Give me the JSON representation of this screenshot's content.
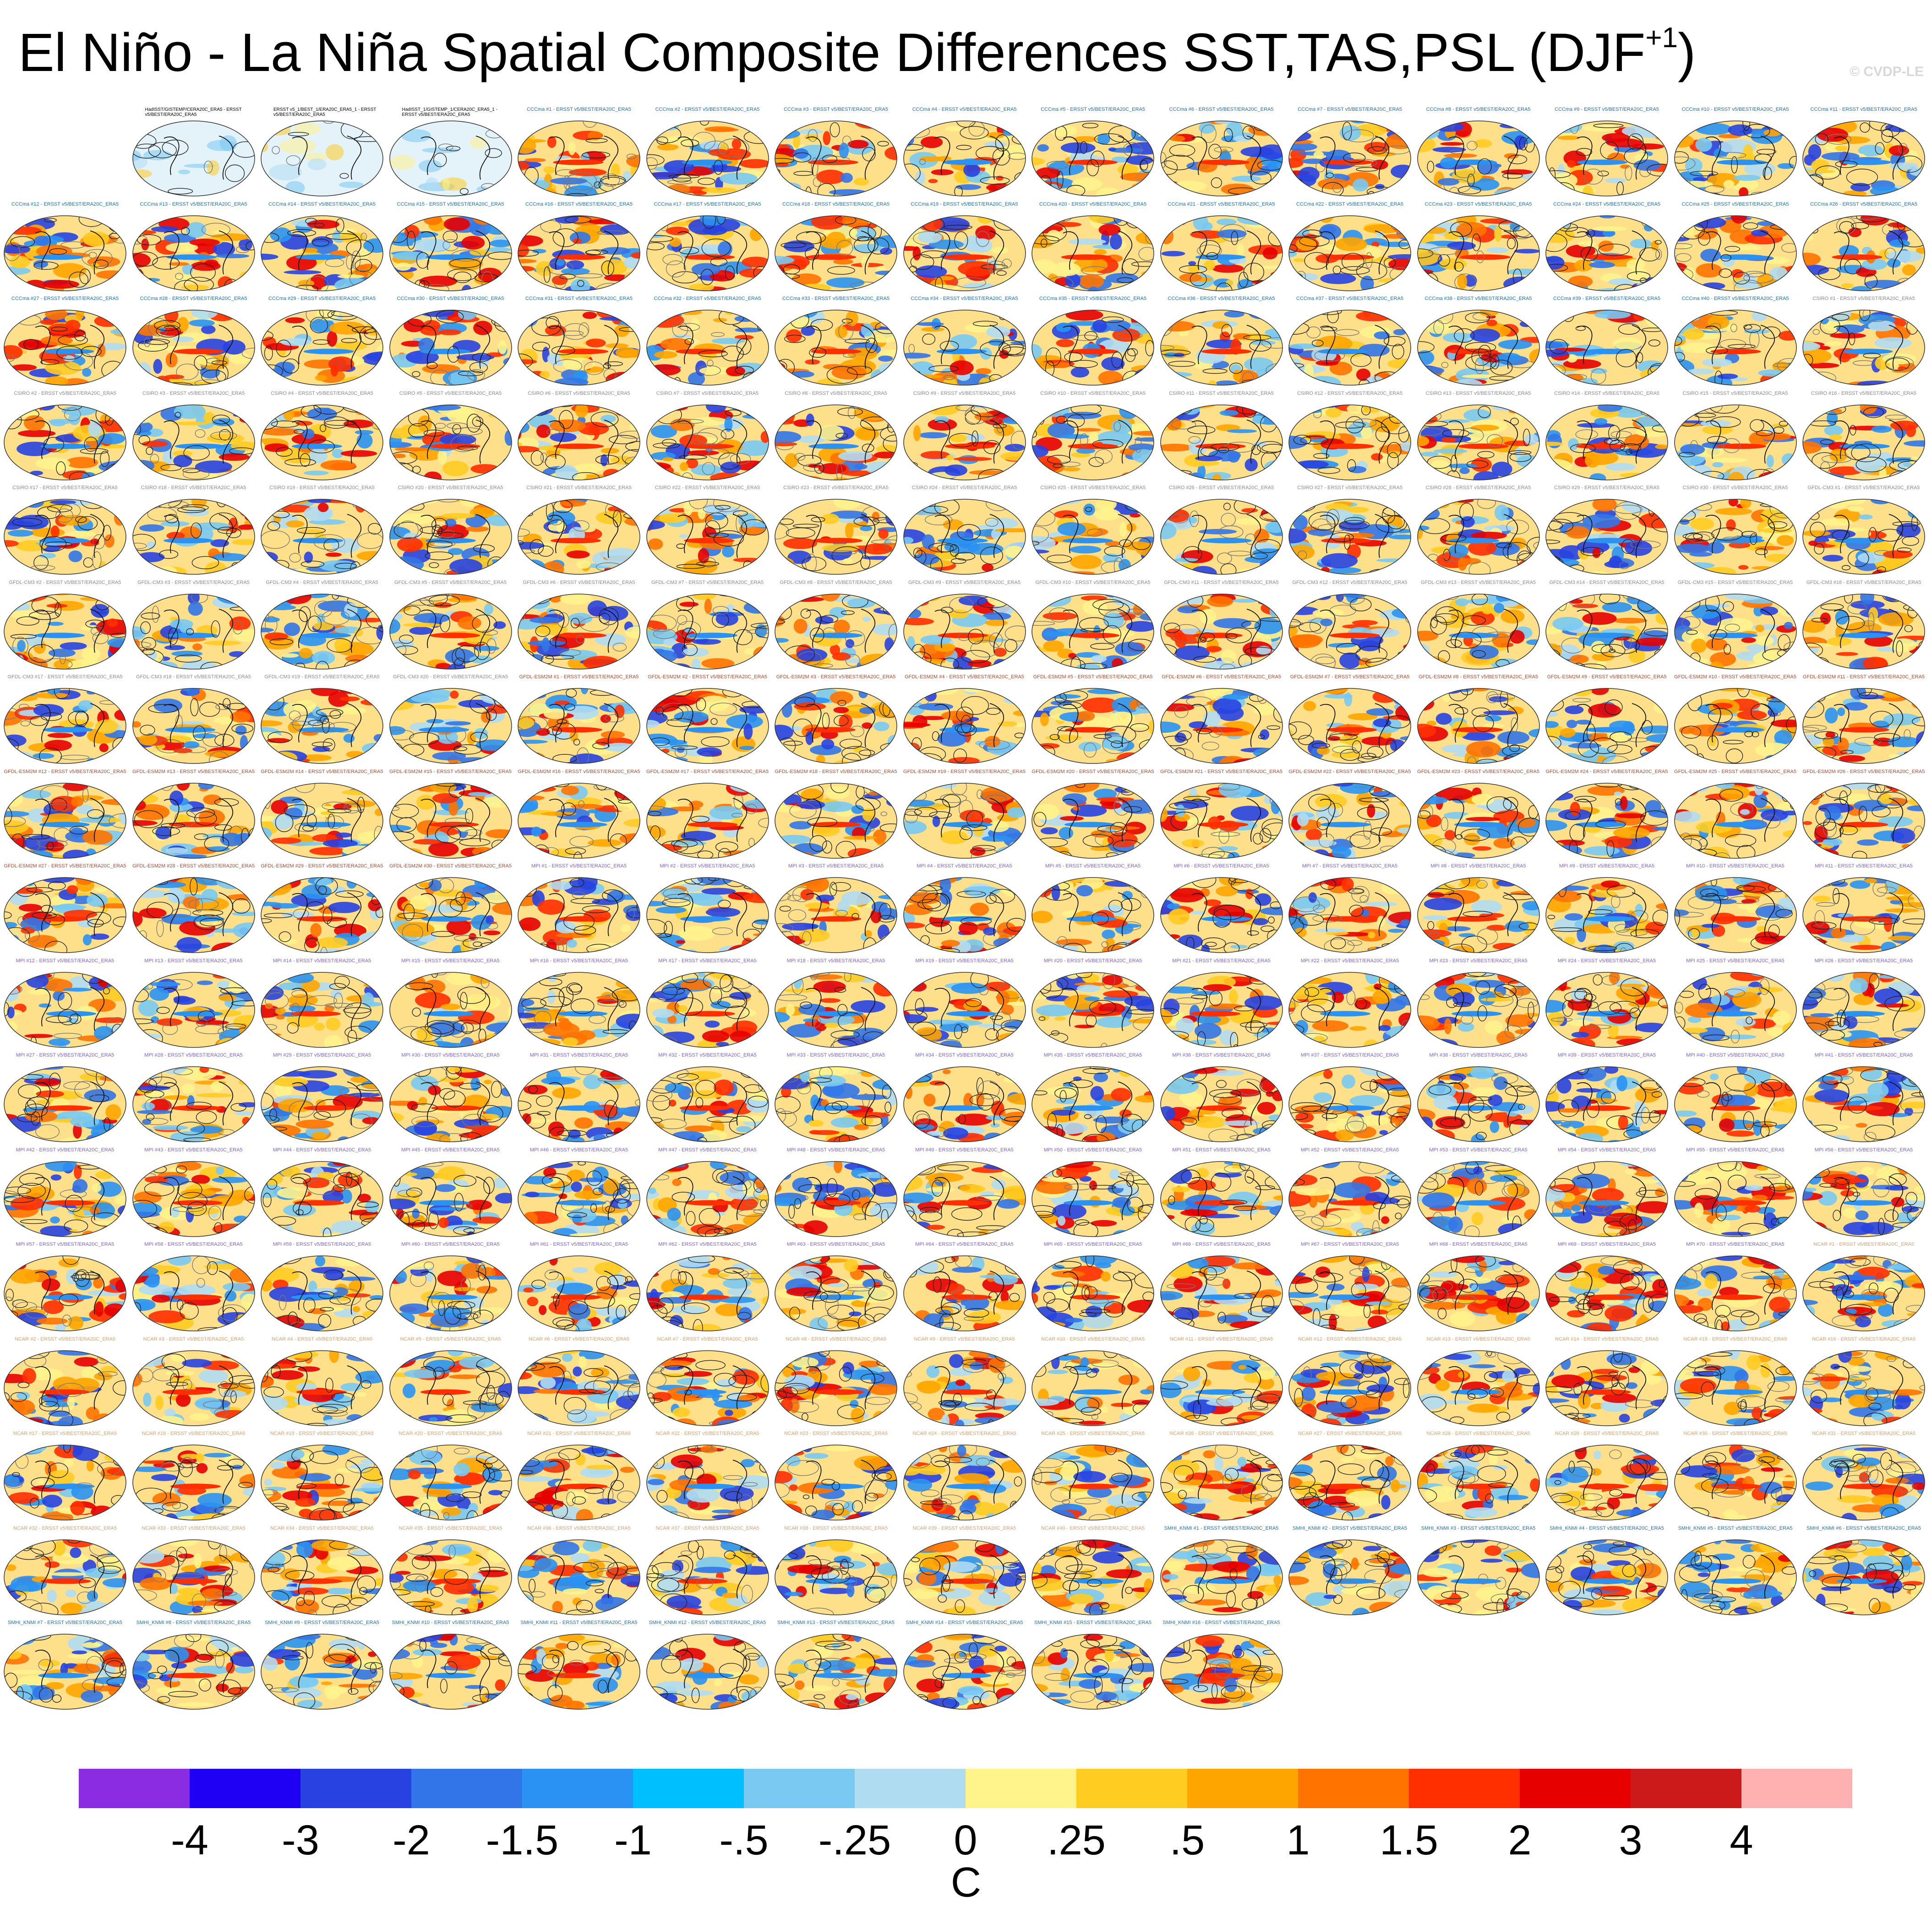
{
  "chart_data": {
    "type": "heatmap",
    "title": "El Niño - La Niña Spatial Composite Differences SST,TAS,PSL (DJF",
    "title_superscript": "+1",
    "title_close": ")",
    "watermark": "© CVDP-LE",
    "units": "C",
    "colorbar": {
      "ticks": [
        "-4",
        "-3",
        "-2",
        "-1.5",
        "-1",
        "-.5",
        "-.25",
        "0",
        ".25",
        ".5",
        "1",
        "1.5",
        "2",
        "3",
        "4"
      ],
      "colors": [
        "#8B2BE2",
        "#1F00F5",
        "#2742E0",
        "#3275E8",
        "#2A92F2",
        "#00BFFF",
        "#79C9F2",
        "#B0DCF2",
        "#FFF38C",
        "#FFCC22",
        "#FFA500",
        "#FF7300",
        "#FF2F00",
        "#E60000",
        "#CC1A1A",
        "#FFB1B1"
      ]
    },
    "panels": [
      {
        "label": "HadISST/GISTEMP/CERA20C_ERA5 - ERSST v5/BEST/ERA20C_ERA5",
        "color": "#000000",
        "multiline": true
      },
      {
        "label": "ERSST v5_1/BEST_1/ERA20C_ERA5_1 - ERSST v5/BEST/ERA20C_ERA5",
        "color": "#000000",
        "multiline": true
      },
      {
        "label": "HadISST_1/GISTEMP_1/CERA20C_ERA5_1 - ERSST v5/BEST/ERA20C_ERA5",
        "color": "#000000",
        "multiline": true
      }
    ],
    "groups": [
      {
        "name": "CCCma",
        "count": 40,
        "color": "#1f6fb5"
      },
      {
        "name": "CSIRO",
        "count": 30,
        "color": "#8a8a8a"
      },
      {
        "name": "GFDL-CM3",
        "count": 20,
        "color": "#8a8a8a"
      },
      {
        "name": "GFDL-ESM2M",
        "count": 30,
        "color": "#b5472c"
      },
      {
        "name": "MPI",
        "count": 70,
        "color": "#7b5fd8"
      },
      {
        "name": "NCAR",
        "count": 40,
        "color": "#d9a070"
      },
      {
        "name": "SMHI_KNMI",
        "count": 16,
        "color": "#1f6fb5"
      }
    ],
    "model_label_suffix": " - ERSST v5/BEST/ERA20C_ERA5"
  }
}
